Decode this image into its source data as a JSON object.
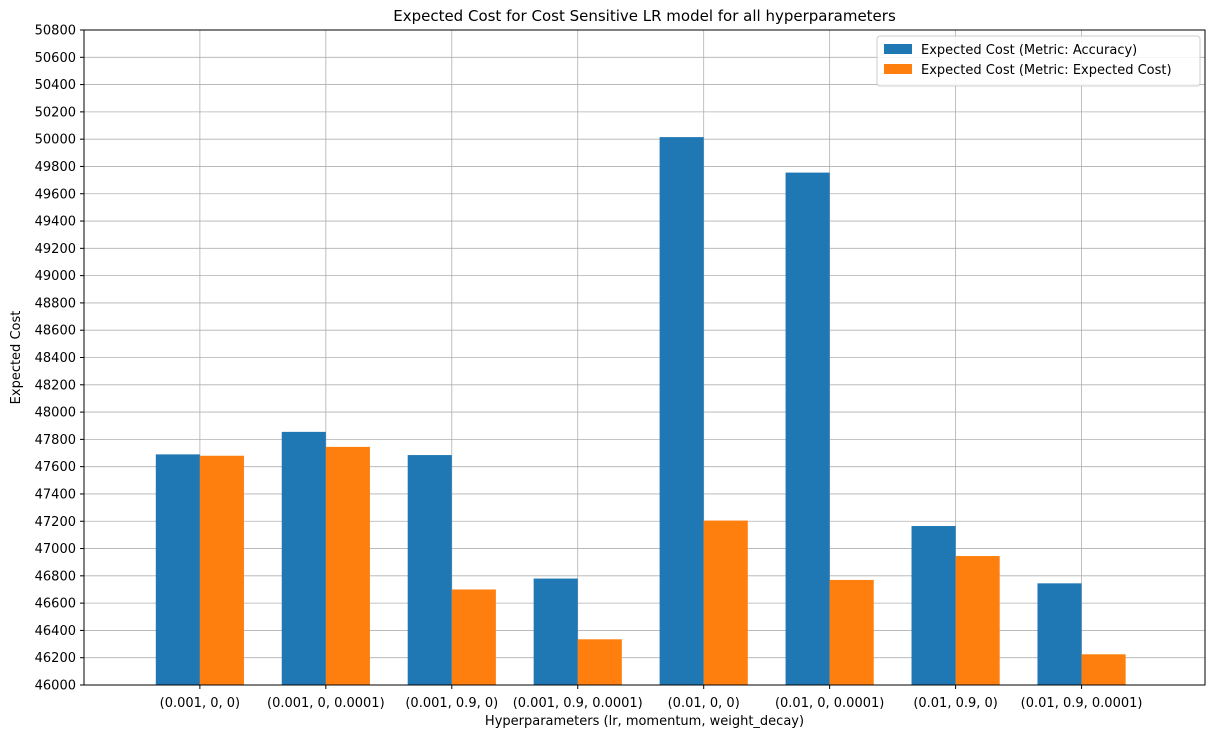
{
  "chart_data": {
    "type": "bar",
    "title": "Expected Cost for Cost Sensitive LR model for all hyperparameters",
    "xlabel": "Hyperparameters (lr, momentum, weight_decay)",
    "ylabel": "Expected Cost",
    "categories": [
      "(0.001, 0, 0)",
      "(0.001, 0, 0.0001)",
      "(0.001, 0.9, 0)",
      "(0.001, 0.9, 0.0001)",
      "(0.01, 0, 0)",
      "(0.01, 0, 0.0001)",
      "(0.01, 0.9, 0)",
      "(0.01, 0.9, 0.0001)"
    ],
    "series": [
      {
        "name": "Expected Cost (Metric: Accuracy)",
        "color": "#1f77b4",
        "values": [
          47690,
          47855,
          47685,
          46780,
          50015,
          49755,
          47165,
          46745
        ]
      },
      {
        "name": "Expected Cost (Metric: Expected Cost)",
        "color": "#ff7f0e",
        "values": [
          47680,
          47745,
          46700,
          46335,
          47205,
          46770,
          46945,
          46225
        ]
      }
    ],
    "ylim": [
      46000,
      50800
    ],
    "yticks": [
      46000,
      46200,
      46400,
      46600,
      46800,
      47000,
      47200,
      47400,
      47600,
      47800,
      48000,
      48200,
      48400,
      48600,
      48800,
      49000,
      49200,
      49400,
      49600,
      49800,
      50000,
      50200,
      50400,
      50600,
      50800
    ],
    "grid": true,
    "legend_position": "top-right"
  }
}
